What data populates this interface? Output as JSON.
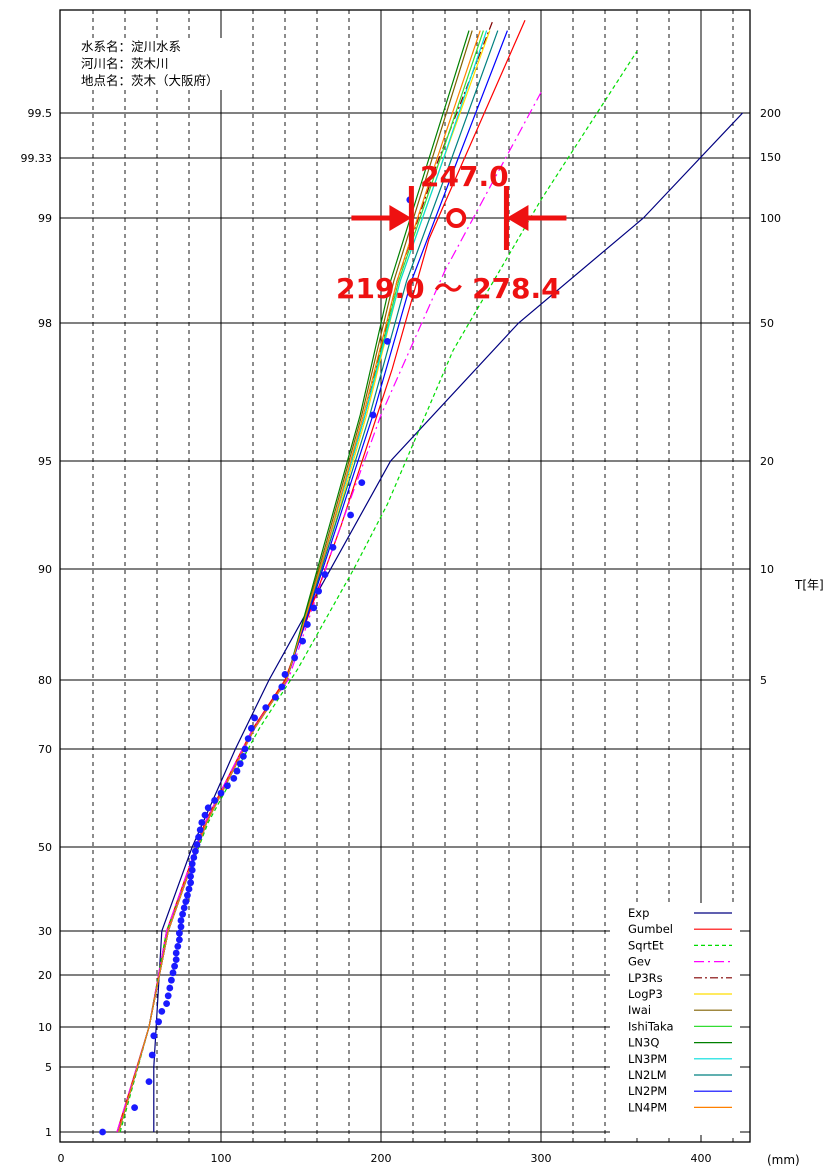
{
  "chart_data": {
    "type": "scatter",
    "info": [
      "水系名：淀川水系",
      "河川名：茨木川",
      "地点名：茨木（大阪府）"
    ],
    "xlabel": "(mm)",
    "x_ticks": [
      "0",
      "100",
      "200",
      "300",
      "400"
    ],
    "xlim": [
      0,
      430
    ],
    "left_axis_ticks": [
      "99.5",
      "99.33",
      "99",
      "98",
      "95",
      "90",
      "80",
      "70",
      "50",
      "30",
      "20",
      "10",
      "5",
      "1"
    ],
    "right_axis_ticks": [
      "200",
      "150",
      "100",
      "50",
      "20",
      "10",
      "5"
    ],
    "right_axis_label": "T[年]",
    "grid": true,
    "legend_placement": "bottom-right",
    "estimate_value": "247.0",
    "interval_label": "219.0 ～ 278.4",
    "interval": [
      219.0,
      278.4
    ],
    "estimate_probability": 99,
    "series": [
      {
        "name": "Exp",
        "color": "#000080",
        "dash": "",
        "points": [
          [
            58,
            1
          ],
          [
            58,
            5
          ],
          [
            63,
            30
          ],
          [
            82,
            50
          ],
          [
            109,
            70
          ],
          [
            130,
            80
          ],
          [
            206,
            95
          ],
          [
            286,
            98
          ],
          [
            364,
            99
          ],
          [
            426,
            99.5
          ]
        ]
      },
      {
        "name": "Gumbel",
        "color": "#ff0000",
        "dash": "",
        "points": [
          [
            35,
            1
          ],
          [
            55,
            10
          ],
          [
            66,
            30
          ],
          [
            90,
            55
          ],
          [
            120,
            73
          ],
          [
            140,
            80
          ],
          [
            175,
            92
          ],
          [
            207,
            97
          ],
          [
            230,
            98.8
          ],
          [
            290,
            99.95
          ]
        ]
      },
      {
        "name": "SqrtEt",
        "color": "#00dd00",
        "dash": "4,3",
        "points": [
          [
            37,
            1
          ],
          [
            55,
            10
          ],
          [
            66,
            30
          ],
          [
            92,
            55
          ],
          [
            124,
            73
          ],
          [
            148,
            81
          ],
          [
            183,
            90
          ],
          [
            204,
            93
          ],
          [
            245,
            97.4
          ],
          [
            300,
            99.1
          ],
          [
            360,
            99.8
          ]
        ]
      },
      {
        "name": "Gev",
        "color": "#ff00ff",
        "dash": "10,4,2,4",
        "points": [
          [
            35,
            1
          ],
          [
            55,
            10
          ],
          [
            66,
            30
          ],
          [
            90,
            55
          ],
          [
            120,
            73
          ],
          [
            142,
            80
          ],
          [
            170,
            91
          ],
          [
            200,
            96
          ],
          [
            240,
            98.5
          ],
          [
            300,
            99.6
          ]
        ]
      },
      {
        "name": "LP3Rs",
        "color": "#800000",
        "dash": "8,3,2,3",
        "points": [
          [
            36,
            1
          ],
          [
            55,
            10
          ],
          [
            67,
            30
          ],
          [
            91,
            55
          ],
          [
            121,
            73
          ],
          [
            141,
            80
          ],
          [
            166,
            91
          ],
          [
            190,
            96
          ],
          [
            210,
            98.4
          ],
          [
            235,
            99.3
          ],
          [
            270,
            99.95
          ]
        ]
      },
      {
        "name": "LogP3",
        "color": "#ffdd00",
        "dash": "",
        "points": [
          [
            36,
            1
          ],
          [
            55,
            10
          ],
          [
            67,
            30
          ],
          [
            91,
            55
          ],
          [
            121,
            73
          ],
          [
            141,
            80
          ],
          [
            167,
            91
          ],
          [
            191,
            96
          ],
          [
            212,
            98.4
          ],
          [
            238,
            99.3
          ],
          [
            268,
            99.9
          ]
        ]
      },
      {
        "name": "Iwai",
        "color": "#806000",
        "dash": "",
        "points": [
          [
            36,
            1
          ],
          [
            55,
            10
          ],
          [
            67,
            30
          ],
          [
            91,
            55
          ],
          [
            121,
            73
          ],
          [
            141,
            80
          ],
          [
            165,
            91
          ],
          [
            188,
            96
          ],
          [
            208,
            98.4
          ],
          [
            231,
            99.3
          ],
          [
            257,
            99.9
          ]
        ]
      },
      {
        "name": "IshiTaka",
        "color": "#33dd33",
        "dash": "",
        "points": [
          [
            36,
            1
          ],
          [
            55,
            10
          ],
          [
            67,
            30
          ],
          [
            91,
            55
          ],
          [
            121,
            73
          ],
          [
            141,
            80
          ],
          [
            166,
            91
          ],
          [
            190,
            96
          ],
          [
            211,
            98.4
          ],
          [
            236,
            99.3
          ],
          [
            264,
            99.9
          ]
        ]
      },
      {
        "name": "LN3Q",
        "color": "#008000",
        "dash": "",
        "points": [
          [
            36,
            1
          ],
          [
            55,
            10
          ],
          [
            67,
            30
          ],
          [
            91,
            55
          ],
          [
            121,
            73
          ],
          [
            141,
            80
          ],
          [
            164,
            91
          ],
          [
            187,
            96
          ],
          [
            206,
            98.4
          ],
          [
            229,
            99.3
          ],
          [
            255,
            99.9
          ]
        ]
      },
      {
        "name": "LN3PM",
        "color": "#00dddd",
        "dash": "",
        "points": [
          [
            36,
            1
          ],
          [
            55,
            10
          ],
          [
            67,
            30
          ],
          [
            91,
            55
          ],
          [
            121,
            73
          ],
          [
            141,
            80
          ],
          [
            166,
            91
          ],
          [
            190,
            96
          ],
          [
            212,
            98.4
          ],
          [
            238,
            99.3
          ],
          [
            266,
            99.9
          ]
        ]
      },
      {
        "name": "LN2LM",
        "color": "#008080",
        "dash": "",
        "points": [
          [
            36,
            1
          ],
          [
            55,
            10
          ],
          [
            67,
            30
          ],
          [
            91,
            55
          ],
          [
            121,
            73
          ],
          [
            141,
            80
          ],
          [
            167,
            91
          ],
          [
            193,
            96
          ],
          [
            216,
            98.4
          ],
          [
            243,
            99.3
          ],
          [
            273,
            99.9
          ]
        ]
      },
      {
        "name": "LN2PM",
        "color": "#0000ff",
        "dash": "",
        "points": [
          [
            36,
            1
          ],
          [
            55,
            10
          ],
          [
            67,
            30
          ],
          [
            91,
            55
          ],
          [
            121,
            73
          ],
          [
            141,
            80
          ],
          [
            168,
            91
          ],
          [
            195,
            96
          ],
          [
            219,
            98.4
          ],
          [
            247,
            99.3
          ],
          [
            279,
            99.9
          ]
        ]
      },
      {
        "name": "LN4PM",
        "color": "#ff8000",
        "dash": "",
        "points": [
          [
            36,
            1
          ],
          [
            55,
            10
          ],
          [
            67,
            30
          ],
          [
            91,
            55
          ],
          [
            121,
            73
          ],
          [
            141,
            80
          ],
          [
            166,
            91
          ],
          [
            189,
            96
          ],
          [
            210,
            98.4
          ],
          [
            234,
            99.3
          ],
          [
            262,
            99.9
          ]
        ]
      }
    ],
    "observations": [
      [
        26,
        1.0
      ],
      [
        46,
        2.5
      ],
      [
        55,
        4.1
      ],
      [
        57,
        6.5
      ],
      [
        58,
        8.9
      ],
      [
        61,
        11
      ],
      [
        63,
        13
      ],
      [
        66,
        14.5
      ],
      [
        67,
        16
      ],
      [
        68,
        17.5
      ],
      [
        69,
        19
      ],
      [
        70,
        20.5
      ],
      [
        71,
        22
      ],
      [
        72,
        23.5
      ],
      [
        72,
        25
      ],
      [
        73,
        26.5
      ],
      [
        74,
        28
      ],
      [
        74,
        29.5
      ],
      [
        75,
        31
      ],
      [
        75,
        32.5
      ],
      [
        76,
        34
      ],
      [
        77,
        35.5
      ],
      [
        78,
        37
      ],
      [
        79,
        38.5
      ],
      [
        80,
        40
      ],
      [
        81,
        41.5
      ],
      [
        81,
        43
      ],
      [
        82,
        44.5
      ],
      [
        82,
        46
      ],
      [
        83,
        47.5
      ],
      [
        84,
        49
      ],
      [
        85,
        50.5
      ],
      [
        86,
        52
      ],
      [
        87,
        53.5
      ],
      [
        88,
        55
      ],
      [
        90,
        56.5
      ],
      [
        92,
        58
      ],
      [
        96,
        59.5
      ],
      [
        100,
        61
      ],
      [
        104,
        62.5
      ],
      [
        108,
        64
      ],
      [
        110,
        65.5
      ],
      [
        112,
        67
      ],
      [
        114,
        68.5
      ],
      [
        115,
        70
      ],
      [
        117,
        71.5
      ],
      [
        119,
        73
      ],
      [
        121,
        74.5
      ],
      [
        128,
        76
      ],
      [
        134,
        77.5
      ],
      [
        138,
        79
      ],
      [
        140,
        80.5
      ],
      [
        146,
        82
      ],
      [
        151,
        83.5
      ],
      [
        154,
        85
      ],
      [
        158,
        86.5
      ],
      [
        161,
        88
      ],
      [
        165,
        89.5
      ],
      [
        170,
        91
      ],
      [
        181,
        92.5
      ],
      [
        188,
        94
      ],
      [
        195,
        96
      ],
      [
        204,
        97.6
      ],
      [
        218,
        99.1
      ]
    ]
  }
}
